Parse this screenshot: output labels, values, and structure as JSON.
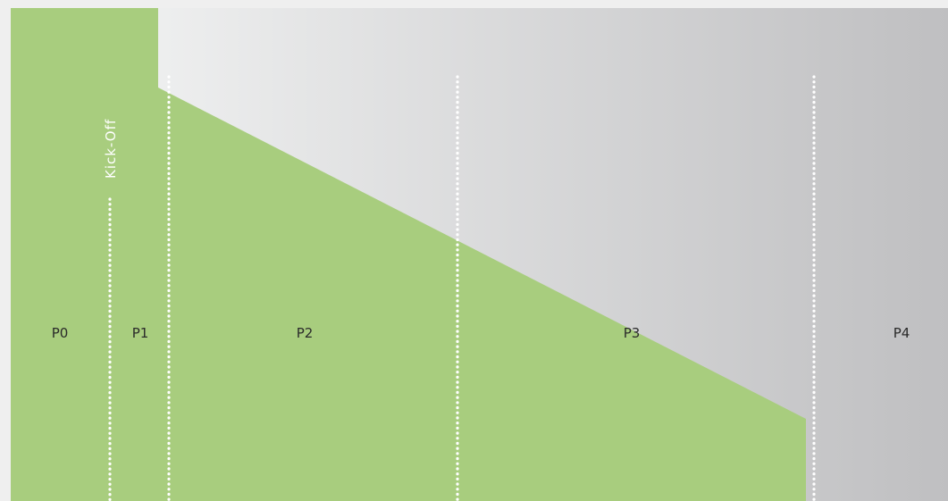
{
  "diagram": {
    "phases": [
      {
        "id": "p0",
        "label": "P0"
      },
      {
        "id": "p1",
        "label": "P1"
      },
      {
        "id": "p2",
        "label": "P2"
      },
      {
        "id": "p3",
        "label": "P3"
      },
      {
        "id": "p4",
        "label": "P4"
      }
    ],
    "milestone_label": "Kick-Off",
    "colors": {
      "green_dark": "#58a22e",
      "green_light": "#a8cd7e",
      "grey_light": "#f6f7f7",
      "grey_dark": "#bfbfc1",
      "page_background": "#efefef",
      "divider": "#ffffff"
    }
  }
}
